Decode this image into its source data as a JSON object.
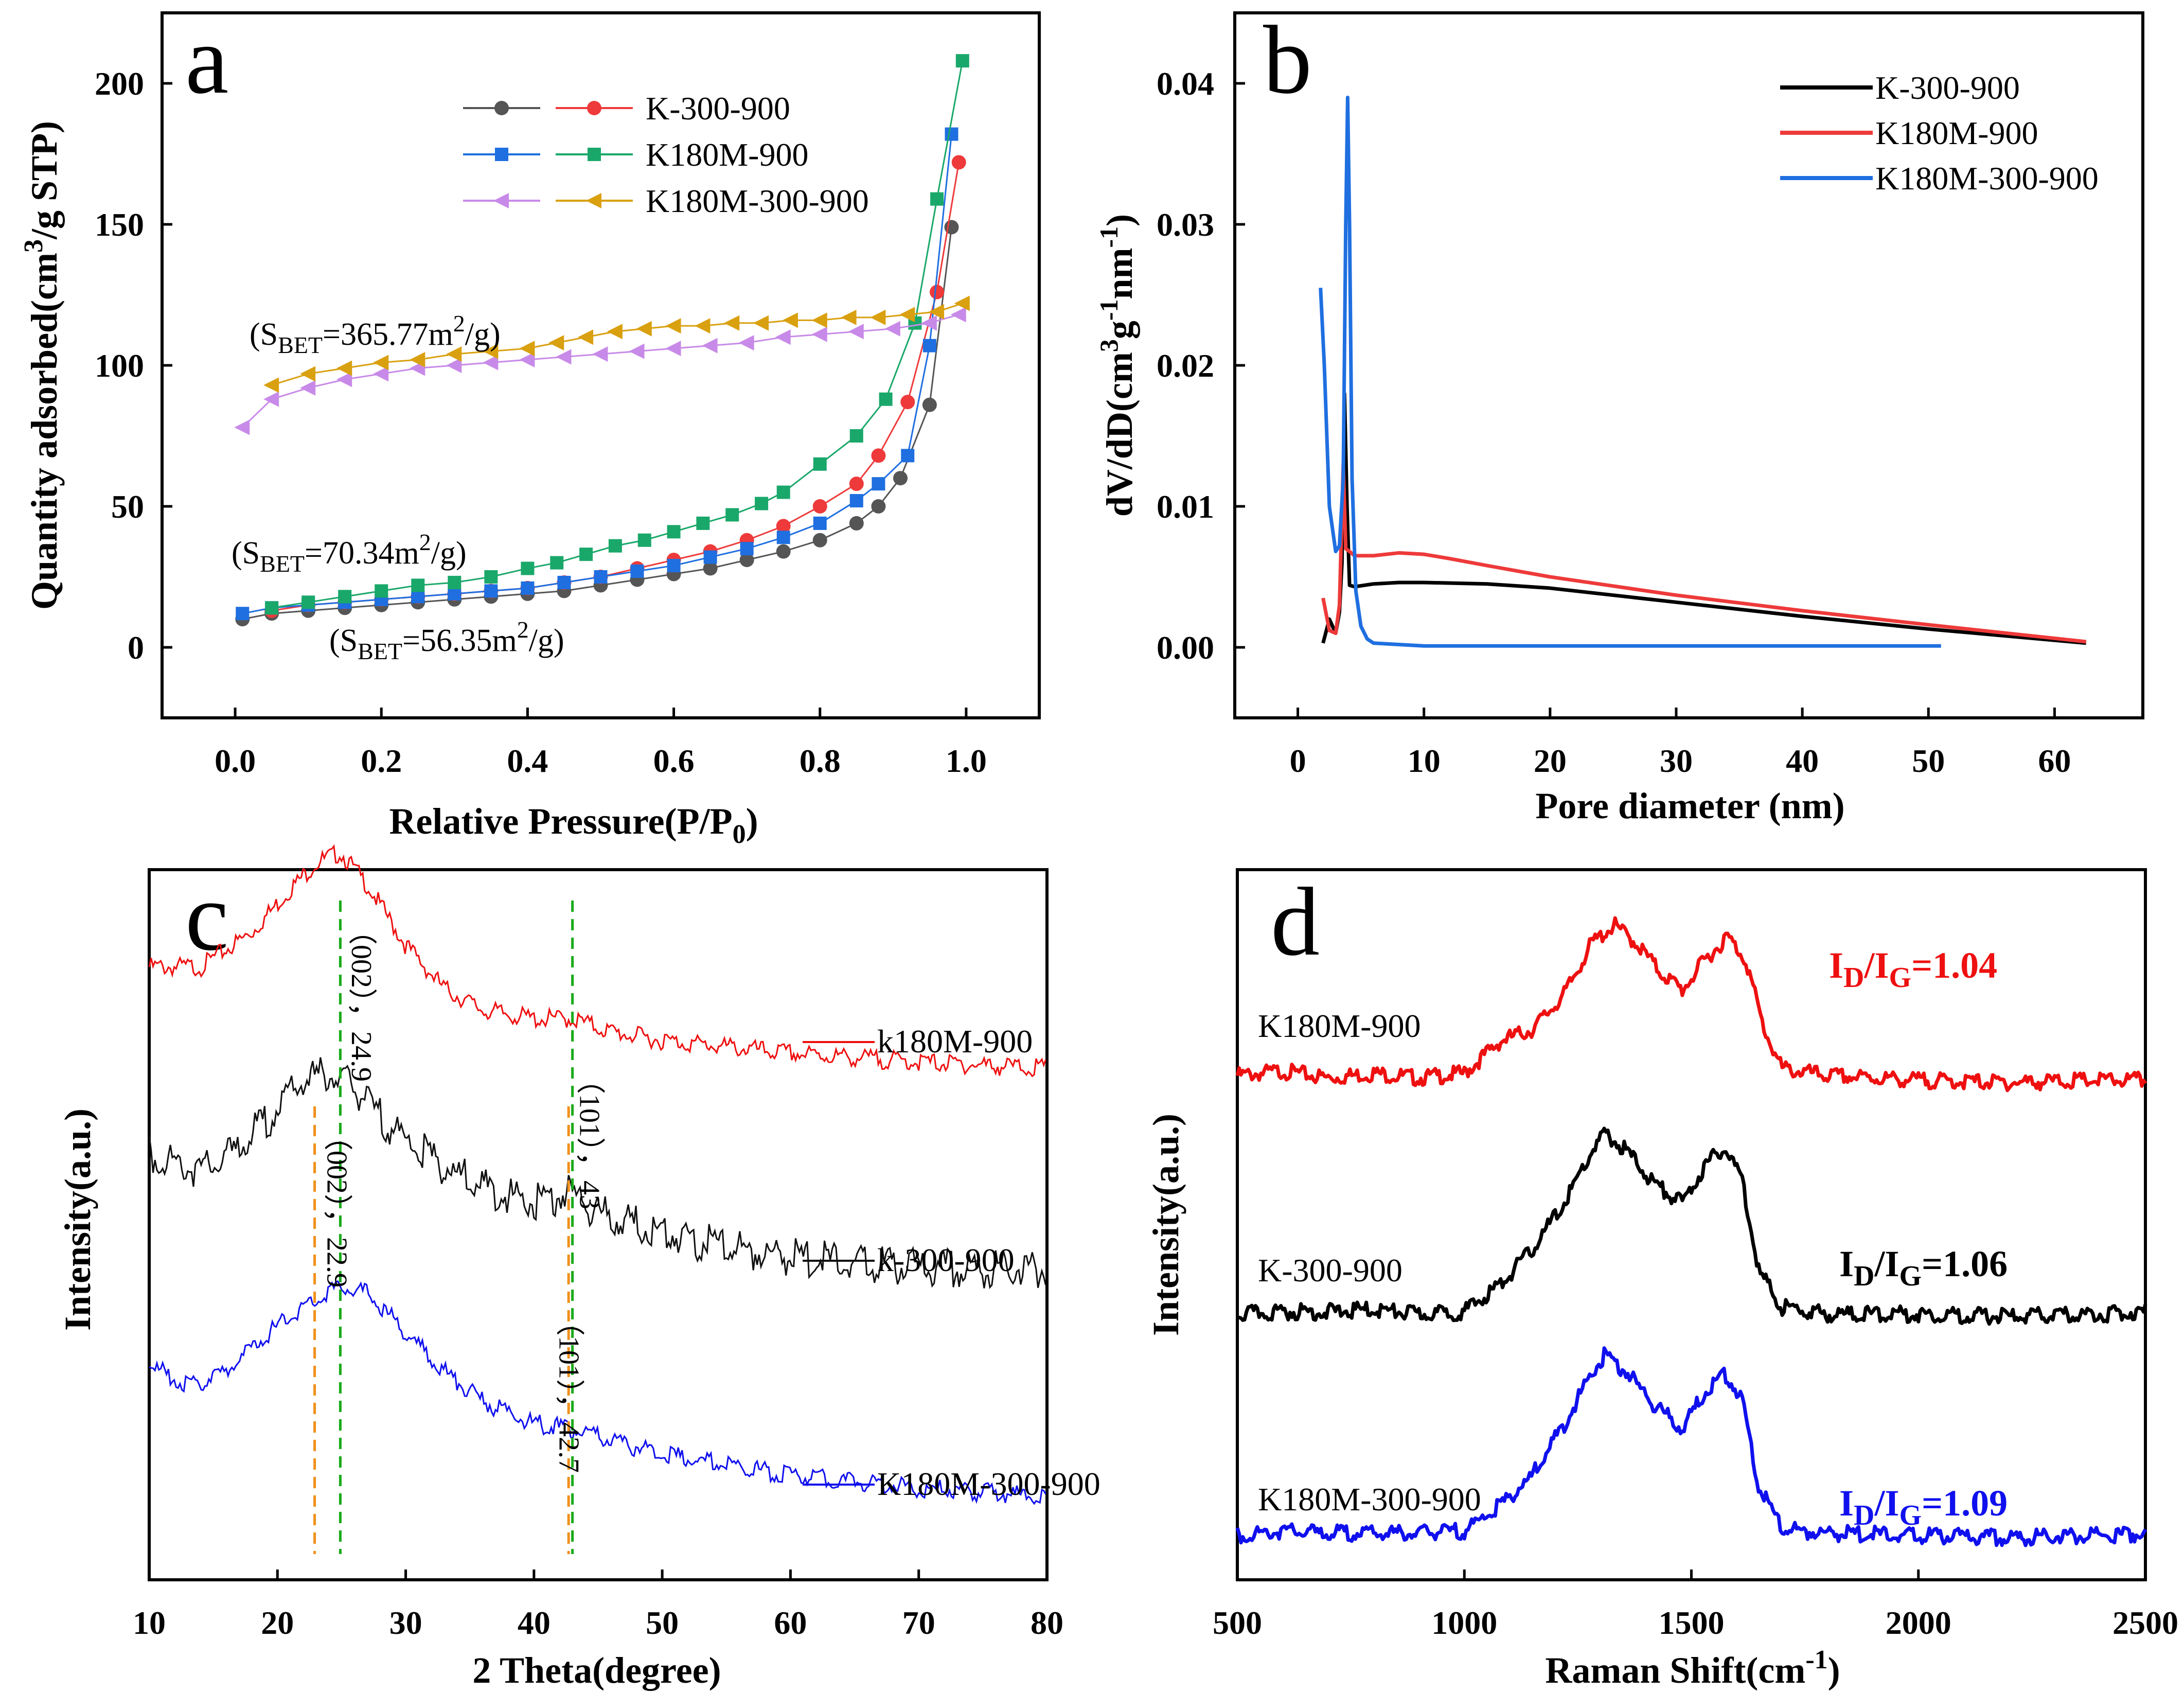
{
  "figure_title": "Multi-panel characterization figure",
  "chart_data": [
    {
      "panel": "a",
      "type": "line",
      "title": "",
      "xlabel": "Relative Pressure(P/P0)",
      "ylabel": "Quantity adsorbed(cm3/g STP)",
      "xlim": [
        -0.1,
        1.1
      ],
      "ylim": [
        -25,
        225
      ],
      "xticks": [
        0.0,
        0.2,
        0.4,
        0.6,
        0.8,
        1.0
      ],
      "xtick_labels": [
        "0.0",
        "0.2",
        "0.4",
        "0.6",
        "0.8",
        "1.0"
      ],
      "yticks": [
        0,
        50,
        100,
        150,
        200
      ],
      "ytick_labels": [
        "0",
        "50",
        "100",
        "150",
        "200"
      ],
      "legend": [
        {
          "label": "K-300-900",
          "marker": "circle",
          "colors": [
            "#555555",
            "#ee3a3a"
          ]
        },
        {
          "label": "K180M-900",
          "marker": "square",
          "colors": [
            "#1f6fe0",
            "#1aa86a"
          ]
        },
        {
          "label": "K180M-300-900",
          "marker": "triangle",
          "colors": [
            "#c88ae8",
            "#d9a010"
          ]
        }
      ],
      "annotations": [
        {
          "text": "(SBET=365.77m2/g)",
          "base": "(S",
          "sub": "BET",
          "mid": "=365.77m",
          "sup": "2",
          "tail": "/g)"
        },
        {
          "text": "(SBET=70.34m2/g)",
          "base": "(S",
          "sub": "BET",
          "mid": "=70.34m",
          "sup": "2",
          "tail": "/g)"
        },
        {
          "text": "(SBET=56.35m2/g)",
          "base": "(S",
          "sub": "BET",
          "mid": "=56.35m",
          "sup": "2",
          "tail": "/g)"
        }
      ],
      "series": [
        {
          "name": "K-300-900 adsorption",
          "color": "#555555",
          "marker": "circle",
          "x": [
            0.01,
            0.05,
            0.1,
            0.15,
            0.2,
            0.25,
            0.3,
            0.35,
            0.4,
            0.45,
            0.5,
            0.55,
            0.6,
            0.65,
            0.7,
            0.75,
            0.8,
            0.85,
            0.88,
            0.91,
            0.95,
            0.98
          ],
          "y": [
            10,
            12,
            13,
            14,
            15,
            16,
            17,
            18,
            19,
            20,
            22,
            24,
            26,
            28,
            31,
            34,
            38,
            44,
            50,
            60,
            86,
            149
          ]
        },
        {
          "name": "K-300-900 desorption",
          "color": "#ee3a3a",
          "marker": "circle",
          "x": [
            0.99,
            0.96,
            0.92,
            0.88,
            0.85,
            0.8,
            0.75,
            0.7,
            0.65,
            0.6,
            0.55,
            0.5,
            0.45,
            0.4,
            0.35,
            0.3,
            0.25,
            0.2,
            0.15,
            0.1,
            0.05
          ],
          "y": [
            172,
            126,
            87,
            68,
            58,
            50,
            43,
            38,
            34,
            31,
            28,
            25,
            23,
            21,
            20,
            19,
            18,
            17,
            16,
            15,
            13
          ]
        },
        {
          "name": "K180M-900 adsorption",
          "color": "#1f6fe0",
          "marker": "square",
          "x": [
            0.01,
            0.05,
            0.1,
            0.15,
            0.2,
            0.25,
            0.3,
            0.35,
            0.4,
            0.45,
            0.5,
            0.55,
            0.6,
            0.65,
            0.7,
            0.75,
            0.8,
            0.85,
            0.88,
            0.92,
            0.95,
            0.98
          ],
          "y": [
            12,
            14,
            15,
            16,
            17,
            18,
            19,
            20,
            21,
            23,
            25,
            27,
            29,
            32,
            35,
            39,
            44,
            52,
            58,
            68,
            107,
            182
          ]
        },
        {
          "name": "K180M-900 desorption",
          "color": "#1aa86a",
          "marker": "square",
          "x": [
            0.995,
            0.96,
            0.93,
            0.89,
            0.85,
            0.8,
            0.75,
            0.72,
            0.68,
            0.64,
            0.6,
            0.56,
            0.52,
            0.48,
            0.44,
            0.4,
            0.35,
            0.3,
            0.25,
            0.2,
            0.15,
            0.1,
            0.05
          ],
          "y": [
            208,
            159,
            115,
            88,
            75,
            65,
            55,
            51,
            47,
            44,
            41,
            38,
            36,
            33,
            30,
            28,
            25,
            23,
            22,
            20,
            18,
            16,
            14
          ]
        },
        {
          "name": "K180M-300-900 adsorption",
          "color": "#c88ae8",
          "marker": "triangle",
          "x": [
            0.01,
            0.05,
            0.1,
            0.15,
            0.2,
            0.25,
            0.3,
            0.35,
            0.4,
            0.45,
            0.5,
            0.55,
            0.6,
            0.65,
            0.7,
            0.75,
            0.8,
            0.85,
            0.9,
            0.95,
            0.99
          ],
          "y": [
            78,
            88,
            92,
            95,
            97,
            99,
            100,
            101,
            102,
            103,
            104,
            105,
            106,
            107,
            108,
            110,
            111,
            112,
            113,
            115,
            118
          ]
        },
        {
          "name": "K180M-300-900 desorption",
          "color": "#d9a010",
          "marker": "triangle",
          "x": [
            0.995,
            0.96,
            0.92,
            0.88,
            0.84,
            0.8,
            0.76,
            0.72,
            0.68,
            0.64,
            0.6,
            0.56,
            0.52,
            0.48,
            0.44,
            0.4,
            0.35,
            0.3,
            0.25,
            0.2,
            0.15,
            0.1,
            0.05
          ],
          "y": [
            122,
            119,
            118,
            117,
            117,
            116,
            116,
            115,
            115,
            114,
            114,
            113,
            112,
            110,
            108,
            106,
            105,
            104,
            102,
            101,
            99,
            97,
            93
          ]
        }
      ]
    },
    {
      "panel": "b",
      "type": "line",
      "title": "",
      "xlabel": "Pore diameter (nm)",
      "ylabel": "dV/dD(cm3g-1nm-1)",
      "xlim": [
        -5,
        67
      ],
      "ylim": [
        -0.005,
        0.045
      ],
      "xticks": [
        0,
        10,
        20,
        30,
        40,
        50,
        60
      ],
      "xtick_labels": [
        "0",
        "10",
        "20",
        "30",
        "40",
        "50",
        "60"
      ],
      "yticks": [
        0.0,
        0.01,
        0.02,
        0.03,
        0.04
      ],
      "ytick_labels": [
        "0.00",
        "0.01",
        "0.02",
        "0.03",
        "0.04"
      ],
      "series": [
        {
          "name": "K-300-900",
          "color": "#000000",
          "x": [
            2,
            2.5,
            3,
            3.3,
            3.5,
            3.7,
            3.9,
            4.1,
            4.5,
            6,
            8,
            10,
            15,
            20,
            30,
            40,
            50,
            62.5
          ],
          "y": [
            0.0003,
            0.002,
            0.001,
            0.0025,
            0.006,
            0.018,
            0.01,
            0.0044,
            0.0043,
            0.0045,
            0.0046,
            0.0046,
            0.0045,
            0.0042,
            0.0032,
            0.0022,
            0.0013,
            0.0003
          ]
        },
        {
          "name": "K180M-900",
          "color": "#ee3a3a",
          "x": [
            2,
            2.5,
            3,
            3.3,
            3.6,
            3.8,
            4.1,
            4.5,
            6,
            8,
            10,
            12,
            15,
            20,
            30,
            40,
            50,
            62.5
          ],
          "y": [
            0.0035,
            0.0012,
            0.001,
            0.003,
            0.013,
            0.007,
            0.0068,
            0.0065,
            0.0065,
            0.0067,
            0.0066,
            0.0063,
            0.0058,
            0.005,
            0.0037,
            0.0026,
            0.0016,
            0.0004
          ]
        },
        {
          "name": "K180M-300-900",
          "color": "#1f6fe0",
          "x": [
            1.8,
            2.1,
            2.5,
            3,
            3.3,
            3.6,
            3.8,
            3.95,
            4.1,
            4.3,
            4.6,
            5,
            5.5,
            6,
            8,
            10,
            15,
            20,
            30,
            40,
            45,
            51
          ],
          "y": [
            0.0255,
            0.02,
            0.01,
            0.0068,
            0.0072,
            0.012,
            0.03,
            0.039,
            0.03,
            0.012,
            0.004,
            0.0015,
            0.0006,
            0.0003,
            0.0002,
            0.0001,
            0.0001,
            0.0001,
            0.0001,
            0.0001,
            0.0001,
            0.0001
          ]
        }
      ],
      "legend": [
        {
          "label": "K-300-900",
          "color": "#000000"
        },
        {
          "label": "K180M-900",
          "color": "#ee3a3a"
        },
        {
          "label": "K180M-300-900",
          "color": "#1f6fe0"
        }
      ]
    },
    {
      "panel": "c",
      "type": "line",
      "title": "",
      "xlabel": "2 Theta(degree)",
      "ylabel": "Intensity(a.u.)",
      "xlim": [
        10,
        80
      ],
      "xticks": [
        10,
        20,
        30,
        40,
        50,
        60,
        70,
        80
      ],
      "xtick_labels": [
        "10",
        "20",
        "30",
        "40",
        "50",
        "60",
        "70",
        "80"
      ],
      "series": [
        {
          "name": "k180M-900",
          "color": "#ee1010",
          "offset": 2.0,
          "x": [
            10,
            14,
            18,
            21,
            23,
            24.9,
            27,
            30,
            33,
            36,
            40,
            43,
            46,
            50,
            60,
            70,
            80
          ],
          "y": [
            0.62,
            0.62,
            0.78,
            0.98,
            1.1,
            1.15,
            1.0,
            0.72,
            0.52,
            0.42,
            0.38,
            0.38,
            0.32,
            0.28,
            0.22,
            0.18,
            0.15
          ]
        },
        {
          "name": "k-300-900",
          "color": "#111111",
          "offset": 1.0,
          "x": [
            10,
            14,
            16,
            19,
            22,
            24,
            26,
            28,
            30,
            33,
            36,
            40,
            43,
            45,
            48,
            52,
            60,
            70,
            80
          ],
          "y": [
            0.78,
            0.7,
            0.76,
            0.92,
            1.12,
            1.15,
            1.08,
            0.95,
            0.84,
            0.72,
            0.62,
            0.55,
            0.6,
            0.5,
            0.45,
            0.38,
            0.3,
            0.25,
            0.24
          ]
        },
        {
          "name": "K180M-300-900",
          "color": "#1010ee",
          "offset": 0.0,
          "x": [
            10,
            13,
            16,
            19,
            22,
            25,
            27,
            30,
            33,
            36,
            40,
            43,
            46,
            50,
            60,
            70,
            80
          ],
          "y": [
            0.85,
            0.75,
            0.82,
            0.98,
            1.12,
            1.22,
            1.18,
            1.0,
            0.82,
            0.68,
            0.58,
            0.55,
            0.5,
            0.44,
            0.34,
            0.28,
            0.24
          ]
        }
      ],
      "legend": [
        {
          "label": "k180M-900",
          "color": "#ee1010"
        },
        {
          "label": "k-300-900",
          "color": "#111111"
        },
        {
          "label": "K180M-300-900",
          "color": "#1010ee"
        }
      ],
      "reference_lines": [
        {
          "x": 22.9,
          "color": "#f0901a"
        },
        {
          "x": 24.9,
          "color": "#1aaa1a"
        },
        {
          "x": 42.7,
          "color": "#f0901a"
        },
        {
          "x": 43,
          "color": "#1aaa1a"
        }
      ],
      "peak_annotations": [
        {
          "x": 24.9,
          "text": "（002），24.9"
        },
        {
          "x": 43,
          "text": "（101），43"
        },
        {
          "x": 22.9,
          "text": "（002），22.9"
        },
        {
          "x": 42.7,
          "text": "（101），42.7"
        }
      ]
    },
    {
      "panel": "d",
      "type": "line",
      "title": "",
      "xlabel": "Raman Shift(cm-1)",
      "ylabel": "Intensity(a.u.)",
      "xlim": [
        500,
        2500
      ],
      "xticks": [
        500,
        1000,
        1500,
        2000,
        2500
      ],
      "xtick_labels": [
        "500",
        "1000",
        "1500",
        "2000",
        "2500"
      ],
      "series": [
        {
          "name": "K180M-900",
          "color": "#ee1010",
          "offset": 2.0,
          "x": [
            500,
            600,
            700,
            800,
            900,
            1000,
            1080,
            1150,
            1220,
            1280,
            1330,
            1380,
            1430,
            1480,
            1530,
            1580,
            1620,
            1660,
            1700,
            1800,
            2000,
            2200,
            2400,
            2500
          ],
          "y": [
            0.05,
            0.07,
            0.04,
            0.06,
            0.04,
            0.06,
            0.2,
            0.25,
            0.4,
            0.62,
            0.7,
            0.62,
            0.5,
            0.42,
            0.55,
            0.65,
            0.55,
            0.25,
            0.08,
            0.05,
            0.03,
            0.02,
            0.03,
            0.03
          ]
        },
        {
          "name": "K-300-900",
          "color": "#000000",
          "offset": 1.0,
          "x": [
            500,
            600,
            700,
            800,
            900,
            1000,
            1080,
            1150,
            1220,
            1280,
            1310,
            1360,
            1420,
            1480,
            1530,
            1570,
            1610,
            1650,
            1700,
            1800,
            2000,
            2200,
            2400,
            2500
          ],
          "y": [
            0.02,
            0.03,
            0.03,
            0.04,
            0.02,
            0.03,
            0.15,
            0.3,
            0.5,
            0.72,
            0.8,
            0.72,
            0.58,
            0.5,
            0.66,
            0.74,
            0.62,
            0.2,
            0.05,
            0.02,
            0.02,
            0.01,
            0.02,
            0.03
          ]
        },
        {
          "name": "K180M-300-900",
          "color": "#1010ee",
          "offset": 0.0,
          "x": [
            500,
            600,
            700,
            800,
            900,
            1000,
            1080,
            1150,
            1220,
            1280,
            1310,
            1360,
            1420,
            1480,
            1530,
            1570,
            1610,
            1650,
            1700,
            1800,
            2000,
            2200,
            2400,
            2500
          ],
          "y": [
            0.02,
            0.04,
            0.03,
            0.03,
            0.03,
            0.04,
            0.15,
            0.28,
            0.5,
            0.72,
            0.8,
            0.72,
            0.58,
            0.48,
            0.64,
            0.72,
            0.62,
            0.22,
            0.05,
            0.03,
            0.02,
            0.01,
            0.02,
            0.03
          ]
        }
      ],
      "sample_labels": [
        "K180M-900",
        "K-300-900",
        "K180M-300-900"
      ],
      "ratios": [
        {
          "label": "ID/IG=1.04",
          "base": "I",
          "sub1": "D",
          "mid": "/I",
          "sub2": "G",
          "value": "=1.04",
          "color": "#ee1010"
        },
        {
          "label": "ID/IG=1.06",
          "base": "I",
          "sub1": "D",
          "mid": "/I",
          "sub2": "G",
          "value": "=1.06",
          "color": "#000000"
        },
        {
          "label": "ID/IG=1.09",
          "base": "I",
          "sub1": "D",
          "mid": "/I",
          "sub2": "G",
          "value": "=1.09",
          "color": "#1010ee"
        }
      ]
    }
  ],
  "panel_labels": [
    "a",
    "b",
    "c",
    "d"
  ],
  "axis_text": {
    "a_xlabel_main": "Relative Pressure(P/P",
    "a_xlabel_sub": "0",
    "a_xlabel_end": ")",
    "a_ylabel_main": "Quantity adsorbed(cm",
    "a_ylabel_sup": "3",
    "a_ylabel_end": "/g STP)",
    "b_xlabel": "Pore diameter (nm)",
    "b_ylabel_1": "dV/dD(cm",
    "b_ylabel_sup1": "3",
    "b_ylabel_2": "g",
    "b_ylabel_sup2": "-1",
    "b_ylabel_3": "nm",
    "b_ylabel_sup3": "-1",
    "b_ylabel_4": ")",
    "c_xlabel": "2 Theta(degree)",
    "c_ylabel": "Intensity(a.u.)",
    "d_xlabel_main": "Raman Shift(cm",
    "d_xlabel_sup": "-1",
    "d_xlabel_end": ")",
    "d_ylabel": "Intensity(a.u.)"
  }
}
